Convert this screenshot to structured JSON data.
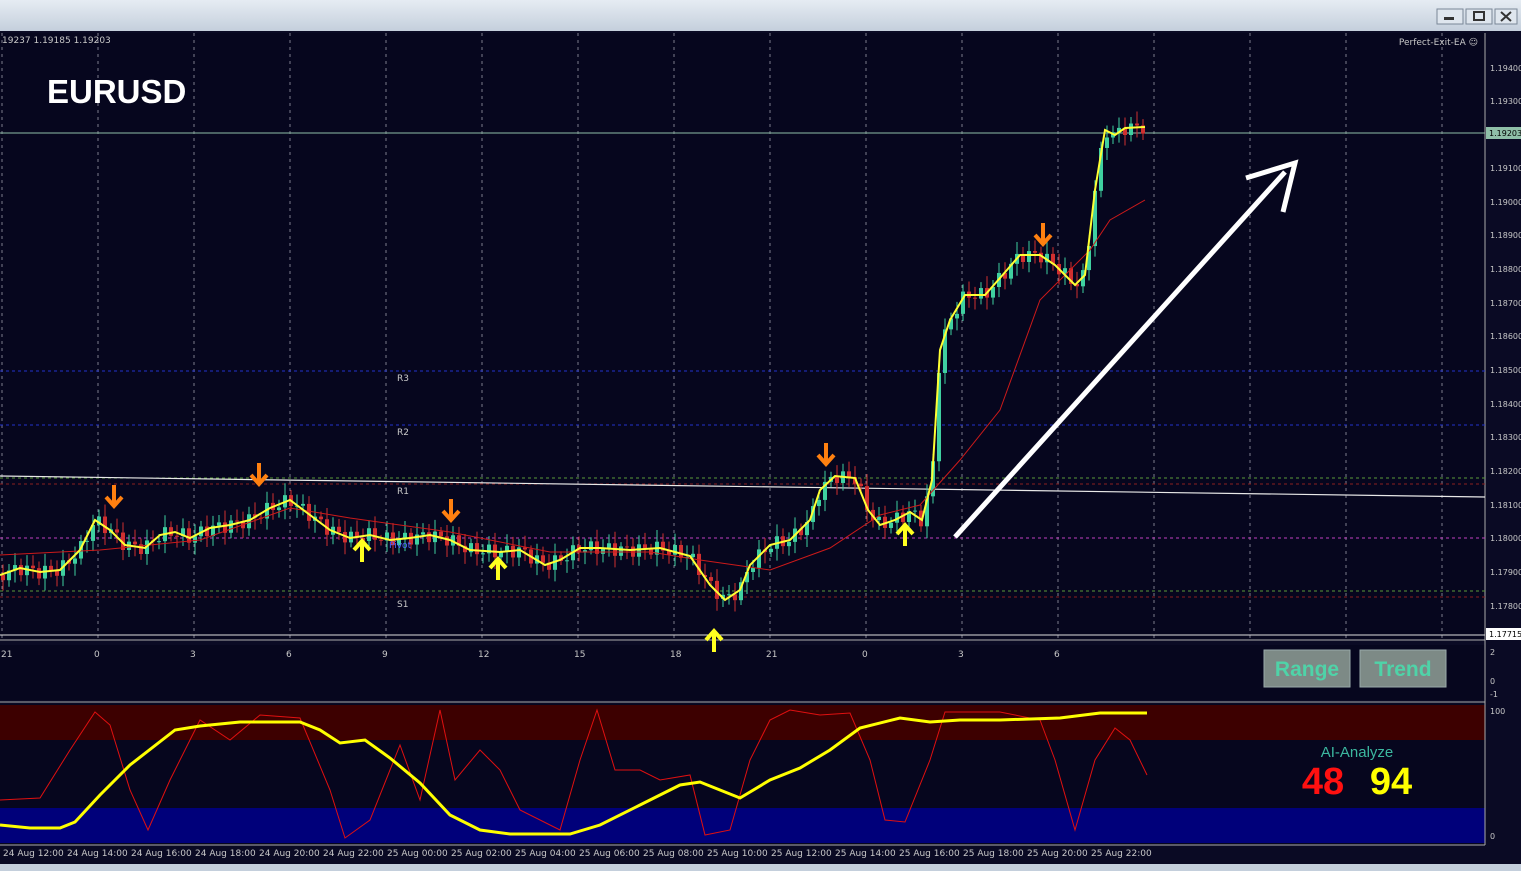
{
  "header": {
    "symbol": "EURUSD",
    "quote": "19237 1.19185 1.19203",
    "expert": "Perfect-Exit-EA ☺"
  },
  "price_axis": [
    "1.19400",
    "1.19300",
    "1.19100",
    "1.19000",
    "1.18900",
    "1.18800",
    "1.18700",
    "1.18600",
    "1.18500",
    "1.18400",
    "1.18300",
    "1.18200",
    "1.18100",
    "1.18000",
    "1.17900",
    "1.17800"
  ],
  "price_current": "1.19203",
  "price_low": "1.17715",
  "levels": [
    "R3",
    "R2",
    "R1",
    "Pivot",
    "S1"
  ],
  "time_axis": [
    "21",
    "0",
    "3",
    "6",
    "9",
    "12",
    "15",
    "18",
    "21",
    "0",
    "3",
    "6"
  ],
  "sub1_axis": [
    "2",
    "0",
    "-1"
  ],
  "buttons": [
    "Range",
    "Trend"
  ],
  "sub2_axis": [
    "100",
    "0"
  ],
  "ai": {
    "title": "AI-Analyze",
    "left": "48",
    "right": "94"
  },
  "date_axis": [
    "24 Aug 12:00",
    "24 Aug 14:00",
    "24 Aug 16:00",
    "24 Aug 18:00",
    "24 Aug 20:00",
    "24 Aug 22:00",
    "25 Aug 00:00",
    "25 Aug 02:00",
    "25 Aug 04:00",
    "25 Aug 06:00",
    "25 Aug 08:00",
    "25 Aug 10:00",
    "25 Aug 12:00",
    "25 Aug 14:00",
    "25 Aug 16:00",
    "25 Aug 18:00",
    "25 Aug 20:00",
    "25 Aug 22:00"
  ]
}
